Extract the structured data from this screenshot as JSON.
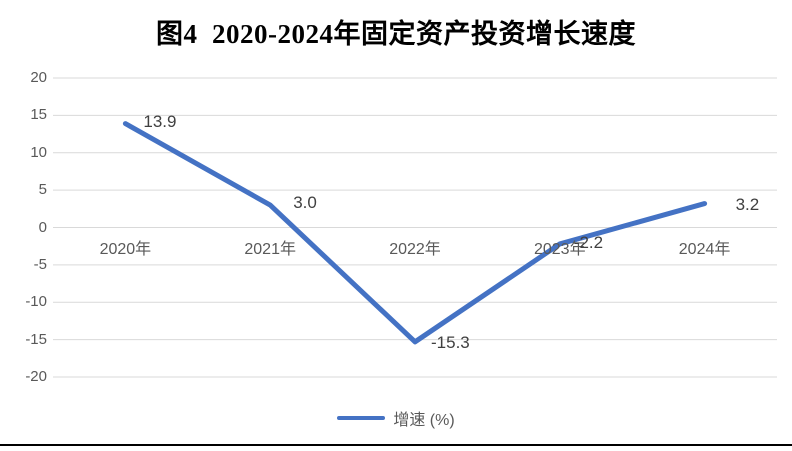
{
  "page": {
    "title": "图4  2020-2024年固定资产投资增长速度",
    "bottom_border": true
  },
  "chart_data": {
    "type": "line",
    "title": "图4  2020-2024年固定资产投资增长速度",
    "categories": [
      "2020年",
      "2021年",
      "2022年",
      "2023年",
      "2024年"
    ],
    "series": [
      {
        "name": "增速 (%)",
        "values": [
          13.9,
          3.0,
          -15.3,
          -2.2,
          3.2
        ],
        "labels": [
          "13.9",
          "3.0",
          "-15.3",
          "-2.2",
          "3.2"
        ]
      }
    ],
    "legend": {
      "label": "增速 (%)",
      "position": "bottom"
    },
    "y_axis": {
      "ticks": [
        20,
        15,
        10,
        5,
        0,
        -5,
        -10,
        -15,
        -20
      ],
      "min": -20,
      "max": 20,
      "grid": true
    },
    "x_axis": {
      "label_position": "below-zero-line"
    },
    "colors": {
      "line": "#4472C4",
      "grid": "#D9D9D9",
      "tick_label": "#595959",
      "data_label": "#404040",
      "title": "#000000"
    }
  }
}
